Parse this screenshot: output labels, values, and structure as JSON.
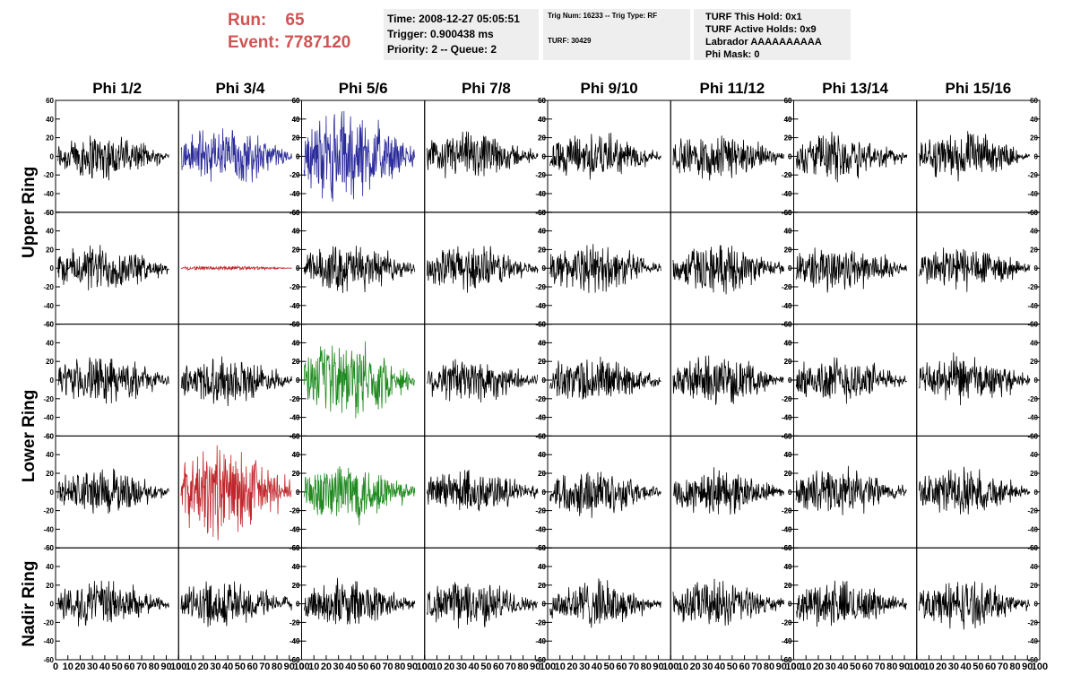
{
  "header": {
    "run_label": "Run:",
    "run_value": "65",
    "event_label": "Event:",
    "event_value": "7787120",
    "info_box_1": [
      "Time: 2008-12-27 05:05:51",
      "Trigger: 0.900438 ms",
      "Priority: 2 -- Queue: 2"
    ],
    "info_box_2": [
      "Trig Num: 16233 -- Trig Type: RF",
      "TURF: 30429"
    ],
    "info_box_3": [
      "TURF This Hold: 0x1",
      "TURF Active Holds: 0x9",
      "Labrador AAAAAAAAAA",
      "Phi Mask: 0"
    ]
  },
  "chart_data": {
    "type": "line",
    "columns": [
      "Phi 1/2",
      "Phi 3/4",
      "Phi 5/6",
      "Phi 7/8",
      "Phi 9/10",
      "Phi 11/12",
      "Phi 13/14",
      "Phi 15/16"
    ],
    "ring_labels": [
      "Upper Ring",
      "Lower Ring",
      "Nadir Ring"
    ],
    "rows_per_ring": [
      2,
      2,
      1
    ],
    "ylim": [
      -60,
      60
    ],
    "yticks": [
      -60,
      -40,
      -20,
      0,
      20,
      40,
      60
    ],
    "xlim": [
      0,
      100
    ],
    "xticks": [
      0,
      10,
      20,
      30,
      40,
      50,
      60,
      70,
      80,
      90,
      100
    ],
    "default_color": "#000000",
    "panels_highlighted": [
      {
        "row": 0,
        "col": 1,
        "color": "#2b2b9a",
        "amplitude": 38
      },
      {
        "row": 0,
        "col": 2,
        "color": "#2b2b9a",
        "amplitude": 58
      },
      {
        "row": 1,
        "col": 1,
        "color": "#c0272d",
        "amplitude": 3
      },
      {
        "row": 2,
        "col": 2,
        "color": "#1f8a1f",
        "amplitude": 48
      },
      {
        "row": 3,
        "col": 1,
        "color": "#c0272d",
        "amplitude": 58
      },
      {
        "row": 3,
        "col": 2,
        "color": "#1f8a1f",
        "amplitude": 40
      }
    ],
    "default_amplitude": 30
  }
}
